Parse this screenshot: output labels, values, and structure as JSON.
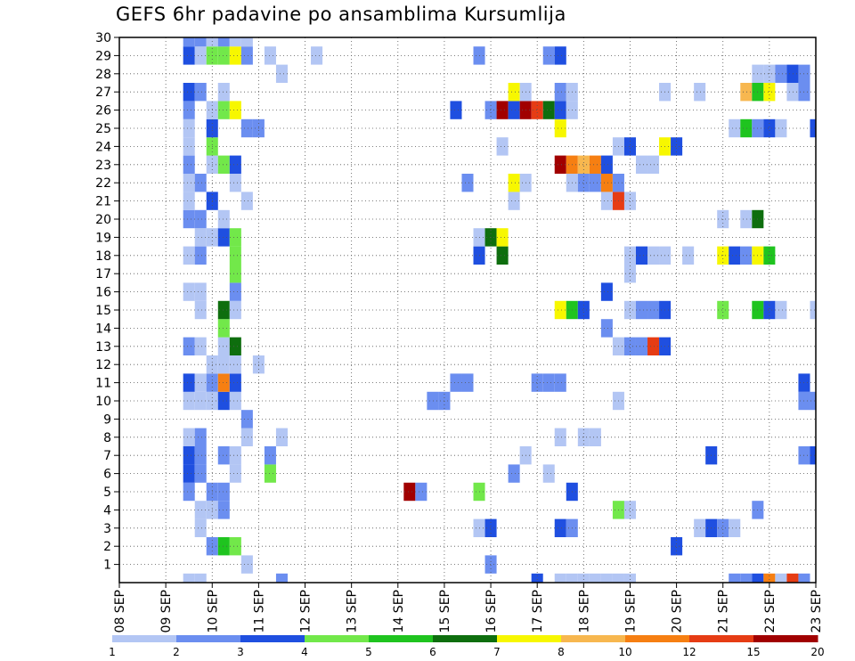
{
  "chart_data": {
    "type": "heatmap",
    "title": "GEFS 6hr padavine po ansamblima Kursumlija",
    "xlabel": "",
    "ylabel": "",
    "x_ticks": [
      "08 SEP",
      "09 SEP",
      "10 SEP",
      "11 SEP",
      "12 SEP",
      "13 SEP",
      "14 SEP",
      "15 SEP",
      "16 SEP",
      "17 SEP",
      "18 SEP",
      "19 SEP",
      "20 SEP",
      "21 SEP",
      "22 SEP",
      "23 SEP"
    ],
    "y_ticks": [
      "1",
      "2",
      "3",
      "4",
      "5",
      "6",
      "7",
      "8",
      "9",
      "10",
      "11",
      "12",
      "13",
      "14",
      "15",
      "16",
      "17",
      "18",
      "19",
      "20",
      "21",
      "22",
      "23",
      "24",
      "25",
      "26",
      "27",
      "28",
      "29",
      "30"
    ],
    "xlim": [
      0,
      60
    ],
    "ylim": [
      0,
      30
    ],
    "x_unit": "6-hour steps from 08 SEP 00 UTC",
    "grid": true,
    "colorbar": {
      "levels": [
        1,
        2,
        3,
        4,
        5,
        6,
        7,
        8,
        10,
        12,
        15,
        20
      ],
      "labels": [
        "1",
        "2",
        "3",
        "4",
        "5",
        "6",
        "7",
        "8",
        "10",
        "12",
        "15",
        "20"
      ],
      "colors": [
        "#b3c6f4",
        "#6b8ef0",
        "#1f4fe0",
        "#72e84a",
        "#1fc41f",
        "#0e6e0e",
        "#f7f700",
        "#f7b74f",
        "#f67f12",
        "#e63c14",
        "#a10000"
      ]
    },
    "cells": [
      [
        6,
        0,
        1
      ],
      [
        7,
        0,
        1
      ],
      [
        14,
        0,
        2
      ],
      [
        36,
        0,
        3
      ],
      [
        38,
        0,
        1
      ],
      [
        39,
        0,
        1
      ],
      [
        40,
        0,
        1
      ],
      [
        41,
        0,
        1
      ],
      [
        42,
        0,
        1
      ],
      [
        43,
        0,
        1
      ],
      [
        44,
        0,
        1
      ],
      [
        53,
        0,
        2
      ],
      [
        54,
        0,
        2
      ],
      [
        55,
        0,
        3
      ],
      [
        56,
        0,
        9
      ],
      [
        57,
        0,
        1
      ],
      [
        58,
        0,
        10
      ],
      [
        59,
        0,
        2
      ],
      [
        11,
        1,
        1
      ],
      [
        32,
        1,
        2
      ],
      [
        8,
        2,
        2
      ],
      [
        9,
        2,
        5
      ],
      [
        10,
        2,
        4
      ],
      [
        48,
        2,
        3
      ],
      [
        7,
        3,
        1
      ],
      [
        31,
        3,
        1
      ],
      [
        32,
        3,
        3
      ],
      [
        38,
        3,
        3
      ],
      [
        39,
        3,
        2
      ],
      [
        50,
        3,
        1
      ],
      [
        51,
        3,
        3
      ],
      [
        52,
        3,
        2
      ],
      [
        53,
        3,
        1
      ],
      [
        7,
        4,
        1
      ],
      [
        8,
        4,
        1
      ],
      [
        9,
        4,
        2
      ],
      [
        43,
        4,
        4
      ],
      [
        44,
        4,
        1
      ],
      [
        55,
        4,
        2
      ],
      [
        6,
        5,
        2
      ],
      [
        8,
        5,
        2
      ],
      [
        9,
        5,
        2
      ],
      [
        25,
        5,
        11
      ],
      [
        26,
        5,
        2
      ],
      [
        31,
        5,
        4
      ],
      [
        39,
        5,
        3
      ],
      [
        6,
        6,
        3
      ],
      [
        7,
        6,
        2
      ],
      [
        10,
        6,
        1
      ],
      [
        13,
        6,
        4
      ],
      [
        34,
        6,
        2
      ],
      [
        37,
        6,
        1
      ],
      [
        6,
        7,
        3
      ],
      [
        7,
        7,
        2
      ],
      [
        9,
        7,
        2
      ],
      [
        10,
        7,
        1
      ],
      [
        13,
        7,
        2
      ],
      [
        35,
        7,
        1
      ],
      [
        51,
        7,
        3
      ],
      [
        59,
        7,
        2
      ],
      [
        60,
        7,
        3
      ],
      [
        6,
        8,
        1
      ],
      [
        7,
        8,
        2
      ],
      [
        11,
        8,
        1
      ],
      [
        14,
        8,
        1
      ],
      [
        38,
        8,
        1
      ],
      [
        40,
        8,
        1
      ],
      [
        41,
        8,
        1
      ],
      [
        11,
        9,
        2
      ],
      [
        6,
        10,
        1
      ],
      [
        7,
        10,
        1
      ],
      [
        8,
        10,
        1
      ],
      [
        9,
        10,
        3
      ],
      [
        10,
        10,
        1
      ],
      [
        27,
        10,
        2
      ],
      [
        28,
        10,
        2
      ],
      [
        43,
        10,
        1
      ],
      [
        59,
        10,
        2
      ],
      [
        60,
        10,
        2
      ],
      [
        6,
        11,
        3
      ],
      [
        7,
        11,
        1
      ],
      [
        8,
        11,
        2
      ],
      [
        9,
        11,
        9
      ],
      [
        10,
        11,
        3
      ],
      [
        29,
        11,
        2
      ],
      [
        30,
        11,
        2
      ],
      [
        36,
        11,
        2
      ],
      [
        37,
        11,
        2
      ],
      [
        38,
        11,
        2
      ],
      [
        59,
        11,
        3
      ],
      [
        8,
        12,
        1
      ],
      [
        9,
        12,
        1
      ],
      [
        10,
        12,
        1
      ],
      [
        12,
        12,
        1
      ],
      [
        6,
        13,
        2
      ],
      [
        7,
        13,
        1
      ],
      [
        9,
        13,
        1
      ],
      [
        10,
        13,
        6
      ],
      [
        43,
        13,
        1
      ],
      [
        44,
        13,
        2
      ],
      [
        45,
        13,
        2
      ],
      [
        46,
        13,
        10
      ],
      [
        47,
        13,
        3
      ],
      [
        9,
        14,
        4
      ],
      [
        42,
        14,
        2
      ],
      [
        7,
        15,
        1
      ],
      [
        9,
        15,
        6
      ],
      [
        10,
        15,
        1
      ],
      [
        38,
        15,
        7
      ],
      [
        39,
        15,
        5
      ],
      [
        40,
        15,
        3
      ],
      [
        44,
        15,
        1
      ],
      [
        45,
        15,
        2
      ],
      [
        46,
        15,
        2
      ],
      [
        47,
        15,
        3
      ],
      [
        52,
        15,
        4
      ],
      [
        55,
        15,
        5
      ],
      [
        56,
        15,
        3
      ],
      [
        57,
        15,
        1
      ],
      [
        60,
        15,
        1
      ],
      [
        6,
        16,
        1
      ],
      [
        7,
        16,
        1
      ],
      [
        10,
        16,
        2
      ],
      [
        42,
        16,
        3
      ],
      [
        10,
        17,
        4
      ],
      [
        44,
        17,
        1
      ],
      [
        6,
        18,
        1
      ],
      [
        7,
        18,
        2
      ],
      [
        10,
        18,
        4
      ],
      [
        31,
        18,
        3
      ],
      [
        33,
        18,
        6
      ],
      [
        44,
        18,
        1
      ],
      [
        45,
        18,
        3
      ],
      [
        46,
        18,
        1
      ],
      [
        47,
        18,
        1
      ],
      [
        49,
        18,
        1
      ],
      [
        52,
        18,
        7
      ],
      [
        53,
        18,
        3
      ],
      [
        54,
        18,
        2
      ],
      [
        55,
        18,
        7
      ],
      [
        56,
        18,
        5
      ],
      [
        7,
        19,
        1
      ],
      [
        8,
        19,
        1
      ],
      [
        9,
        19,
        3
      ],
      [
        10,
        19,
        4
      ],
      [
        31,
        19,
        1
      ],
      [
        32,
        19,
        6
      ],
      [
        33,
        19,
        7
      ],
      [
        6,
        20,
        2
      ],
      [
        7,
        20,
        2
      ],
      [
        9,
        20,
        1
      ],
      [
        52,
        20,
        1
      ],
      [
        54,
        20,
        1
      ],
      [
        55,
        20,
        6
      ],
      [
        6,
        21,
        1
      ],
      [
        8,
        21,
        3
      ],
      [
        11,
        21,
        1
      ],
      [
        34,
        21,
        1
      ],
      [
        42,
        21,
        1
      ],
      [
        43,
        21,
        10
      ],
      [
        44,
        21,
        1
      ],
      [
        6,
        22,
        1
      ],
      [
        7,
        22,
        2
      ],
      [
        10,
        22,
        1
      ],
      [
        30,
        22,
        2
      ],
      [
        34,
        22,
        7
      ],
      [
        35,
        22,
        1
      ],
      [
        39,
        22,
        1
      ],
      [
        40,
        22,
        2
      ],
      [
        41,
        22,
        2
      ],
      [
        42,
        22,
        9
      ],
      [
        43,
        22,
        2
      ],
      [
        6,
        23,
        2
      ],
      [
        8,
        23,
        1
      ],
      [
        9,
        23,
        4
      ],
      [
        10,
        23,
        3
      ],
      [
        38,
        23,
        11
      ],
      [
        39,
        23,
        9
      ],
      [
        40,
        23,
        8
      ],
      [
        41,
        23,
        9
      ],
      [
        42,
        23,
        3
      ],
      [
        45,
        23,
        1
      ],
      [
        46,
        23,
        1
      ],
      [
        6,
        24,
        1
      ],
      [
        8,
        24,
        4
      ],
      [
        33,
        24,
        1
      ],
      [
        43,
        24,
        1
      ],
      [
        44,
        24,
        3
      ],
      [
        47,
        24,
        7
      ],
      [
        48,
        24,
        3
      ],
      [
        6,
        25,
        1
      ],
      [
        8,
        25,
        3
      ],
      [
        11,
        25,
        2
      ],
      [
        12,
        25,
        2
      ],
      [
        38,
        25,
        7
      ],
      [
        53,
        25,
        1
      ],
      [
        54,
        25,
        5
      ],
      [
        55,
        25,
        2
      ],
      [
        56,
        25,
        3
      ],
      [
        57,
        25,
        1
      ],
      [
        60,
        25,
        3
      ],
      [
        6,
        26,
        2
      ],
      [
        8,
        26,
        1
      ],
      [
        9,
        26,
        4
      ],
      [
        10,
        26,
        7
      ],
      [
        29,
        26,
        3
      ],
      [
        32,
        26,
        2
      ],
      [
        33,
        26,
        11
      ],
      [
        34,
        26,
        3
      ],
      [
        35,
        26,
        11
      ],
      [
        36,
        26,
        10
      ],
      [
        37,
        26,
        6
      ],
      [
        38,
        26,
        3
      ],
      [
        39,
        26,
        1
      ],
      [
        6,
        27,
        3
      ],
      [
        7,
        27,
        2
      ],
      [
        9,
        27,
        1
      ],
      [
        34,
        27,
        7
      ],
      [
        35,
        27,
        1
      ],
      [
        38,
        27,
        2
      ],
      [
        39,
        27,
        1
      ],
      [
        47,
        27,
        1
      ],
      [
        50,
        27,
        1
      ],
      [
        54,
        27,
        8
      ],
      [
        55,
        27,
        5
      ],
      [
        56,
        27,
        7
      ],
      [
        58,
        27,
        1
      ],
      [
        59,
        27,
        2
      ],
      [
        14,
        28,
        1
      ],
      [
        55,
        28,
        1
      ],
      [
        56,
        28,
        1
      ],
      [
        57,
        28,
        2
      ],
      [
        58,
        28,
        3
      ],
      [
        59,
        28,
        2
      ],
      [
        6,
        29,
        3
      ],
      [
        7,
        29,
        1
      ],
      [
        8,
        29,
        4
      ],
      [
        9,
        29,
        4
      ],
      [
        10,
        29,
        7
      ],
      [
        11,
        29,
        2
      ],
      [
        13,
        29,
        1
      ],
      [
        17,
        29,
        1
      ],
      [
        31,
        29,
        2
      ],
      [
        37,
        29,
        2
      ],
      [
        38,
        29,
        3
      ],
      [
        6,
        30,
        2
      ],
      [
        7,
        30,
        2
      ],
      [
        8,
        30,
        1
      ],
      [
        9,
        30,
        2
      ],
      [
        10,
        30,
        1
      ],
      [
        11,
        30,
        1
      ]
    ],
    "cells_format": "[x_step, y_member, color_index_1_to_11]"
  }
}
